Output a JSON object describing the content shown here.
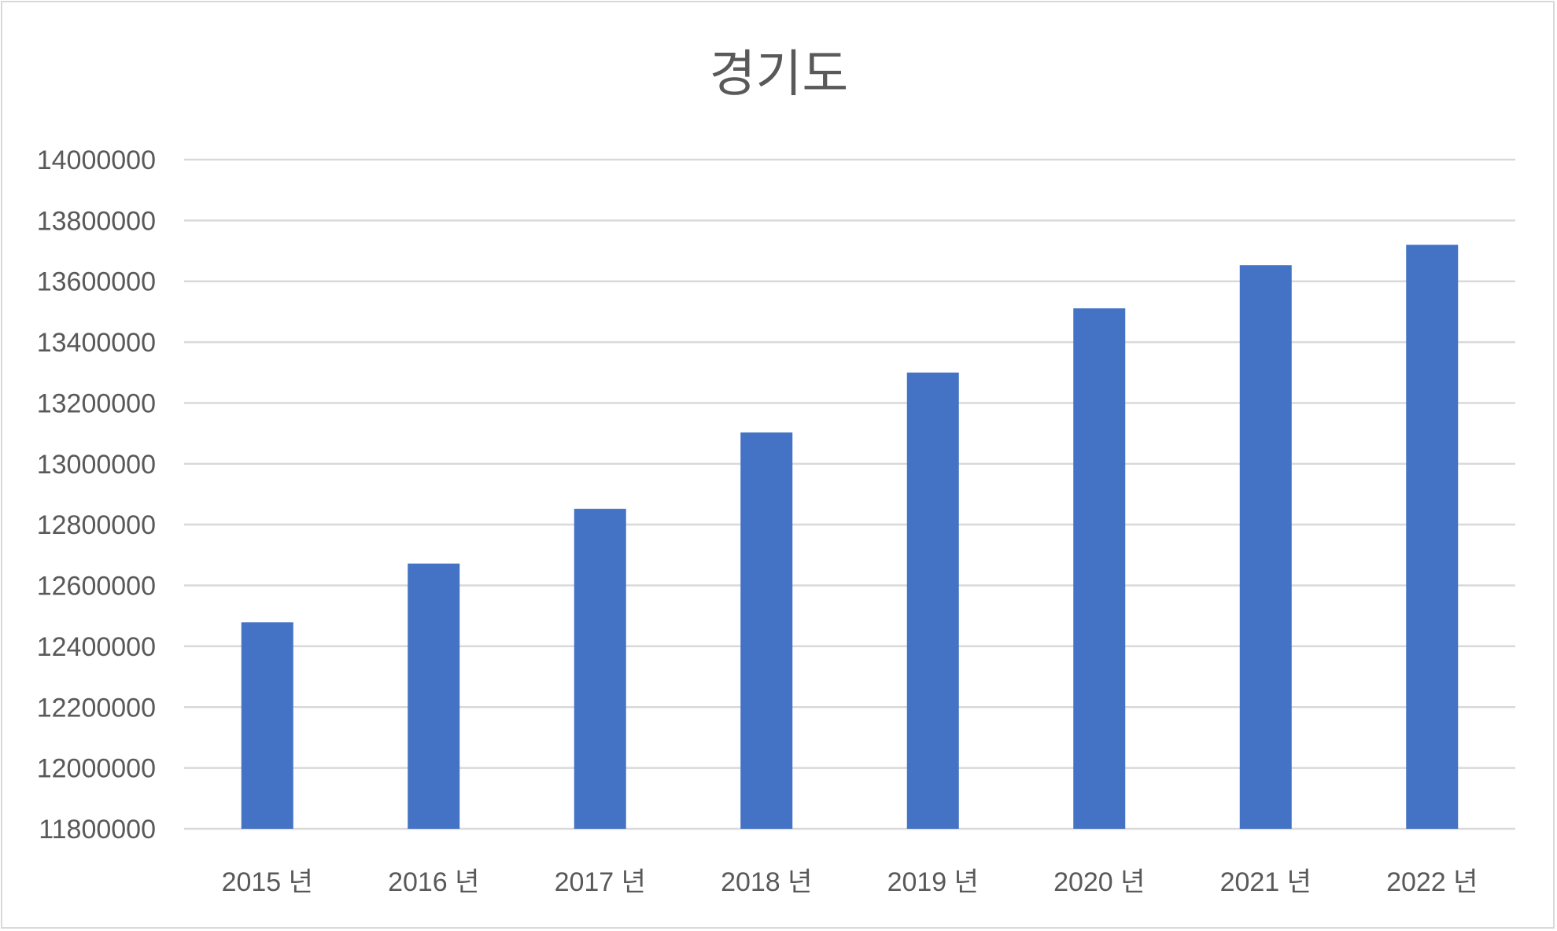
{
  "chart_data": {
    "type": "bar",
    "title": "경기도",
    "xlabel": "",
    "ylabel": "",
    "categories": [
      "2015 년",
      "2016 년",
      "2017 년",
      "2018 년",
      "2019 년",
      "2020 년",
      "2021 년",
      "2022 년"
    ],
    "values": [
      12479000,
      12672000,
      12852000,
      13103000,
      13300000,
      13511000,
      13653000,
      13720000
    ],
    "ylim": [
      11800000,
      14000000
    ],
    "yticks": [
      "11800000",
      "12000000",
      "12200000",
      "12400000",
      "12600000",
      "12800000",
      "13000000",
      "13200000",
      "13400000",
      "13600000",
      "13800000",
      "14000000"
    ],
    "grid": true,
    "legend": "none",
    "bar_color": "#4472c4",
    "grid_color": "#d9d9d9",
    "text_color": "#595959"
  }
}
